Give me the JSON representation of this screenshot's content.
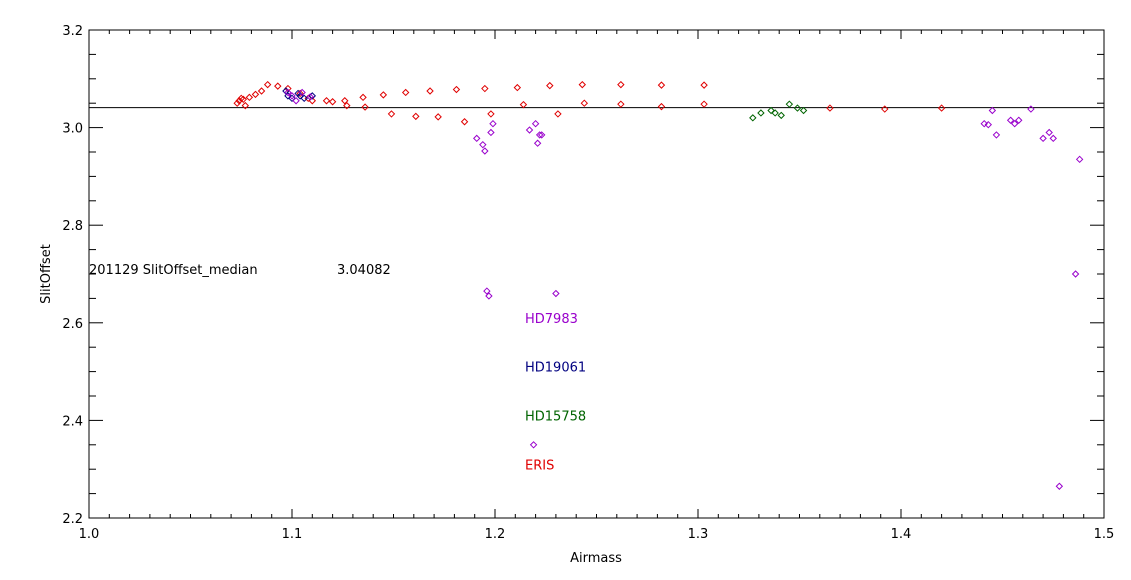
{
  "chart_data": {
    "type": "scatter",
    "title": "",
    "xlabel": "Airmass",
    "ylabel": "SlitOffset",
    "xlim": [
      1.0,
      1.5
    ],
    "ylim": [
      2.2,
      3.2
    ],
    "x_ticks": [
      "1.0",
      "1.1",
      "1.2",
      "1.3",
      "1.4",
      "1.5"
    ],
    "y_ticks": [
      "2.2",
      "2.4",
      "2.6",
      "2.8",
      "3.0",
      "3.2"
    ],
    "grid": false,
    "marker": "diamond",
    "median_line": 3.04082,
    "annotation": {
      "label": "201129  SlitOffset_median",
      "value": "3.04082",
      "y": 2.71
    },
    "legend_labels": [
      {
        "name": "HD7983",
        "color": "#9900cc",
        "y": 2.61
      },
      {
        "name": "HD19061",
        "color": "#000080",
        "y": 2.51
      },
      {
        "name": "HD15758",
        "color": "#006400",
        "y": 2.41
      },
      {
        "name": "ERIS",
        "color": "#e00000",
        "y": 2.31
      }
    ],
    "series": [
      {
        "name": "ERIS",
        "color": "#e00000",
        "points": [
          [
            1.073,
            3.05
          ],
          [
            1.074,
            3.055
          ],
          [
            1.075,
            3.06
          ],
          [
            1.076,
            3.058
          ],
          [
            1.077,
            3.045
          ],
          [
            1.079,
            3.062
          ],
          [
            1.082,
            3.068
          ],
          [
            1.085,
            3.075
          ],
          [
            1.088,
            3.088
          ],
          [
            1.093,
            3.085
          ],
          [
            1.098,
            3.08
          ],
          [
            1.104,
            3.07
          ],
          [
            1.108,
            3.06
          ],
          [
            1.11,
            3.055
          ],
          [
            1.117,
            3.055
          ],
          [
            1.12,
            3.053
          ],
          [
            1.126,
            3.055
          ],
          [
            1.127,
            3.045
          ],
          [
            1.135,
            3.062
          ],
          [
            1.136,
            3.042
          ],
          [
            1.145,
            3.067
          ],
          [
            1.149,
            3.028
          ],
          [
            1.156,
            3.072
          ],
          [
            1.161,
            3.023
          ],
          [
            1.168,
            3.075
          ],
          [
            1.172,
            3.022
          ],
          [
            1.181,
            3.078
          ],
          [
            1.185,
            3.012
          ],
          [
            1.195,
            3.08
          ],
          [
            1.198,
            3.028
          ],
          [
            1.211,
            3.082
          ],
          [
            1.214,
            3.047
          ],
          [
            1.227,
            3.086
          ],
          [
            1.231,
            3.028
          ],
          [
            1.243,
            3.088
          ],
          [
            1.244,
            3.05
          ],
          [
            1.262,
            3.088
          ],
          [
            1.262,
            3.048
          ],
          [
            1.282,
            3.087
          ],
          [
            1.282,
            3.043
          ],
          [
            1.303,
            3.087
          ],
          [
            1.303,
            3.048
          ],
          [
            1.365,
            3.04
          ],
          [
            1.392,
            3.038
          ],
          [
            1.42,
            3.04
          ]
        ]
      },
      {
        "name": "HD19061",
        "color": "#000080",
        "points": [
          [
            1.097,
            3.075
          ],
          [
            1.098,
            3.065
          ],
          [
            1.1,
            3.06
          ],
          [
            1.103,
            3.07
          ],
          [
            1.104,
            3.065
          ],
          [
            1.106,
            3.06
          ],
          [
            1.11,
            3.065
          ]
        ]
      },
      {
        "name": "HD15758",
        "color": "#006400",
        "points": [
          [
            1.327,
            3.02
          ],
          [
            1.331,
            3.03
          ],
          [
            1.336,
            3.035
          ],
          [
            1.338,
            3.03
          ],
          [
            1.341,
            3.025
          ],
          [
            1.345,
            3.048
          ],
          [
            1.349,
            3.04
          ],
          [
            1.352,
            3.035
          ]
        ]
      },
      {
        "name": "HD7983",
        "color": "#9900cc",
        "points": [
          [
            1.098,
            3.072
          ],
          [
            1.1,
            3.065
          ],
          [
            1.102,
            3.055
          ],
          [
            1.105,
            3.072
          ],
          [
            1.109,
            3.063
          ],
          [
            1.191,
            2.978
          ],
          [
            1.194,
            2.965
          ],
          [
            1.195,
            2.952
          ],
          [
            1.196,
            2.665
          ],
          [
            1.197,
            2.655
          ],
          [
            1.198,
            2.99
          ],
          [
            1.199,
            3.008
          ],
          [
            1.217,
            2.995
          ],
          [
            1.22,
            3.008
          ],
          [
            1.221,
            2.968
          ],
          [
            1.222,
            2.985
          ],
          [
            1.223,
            2.985
          ],
          [
            1.219,
            2.35
          ],
          [
            1.23,
            2.66
          ],
          [
            1.441,
            3.008
          ],
          [
            1.443,
            3.006
          ],
          [
            1.445,
            3.035
          ],
          [
            1.447,
            2.985
          ],
          [
            1.454,
            3.015
          ],
          [
            1.456,
            3.008
          ],
          [
            1.458,
            3.015
          ],
          [
            1.464,
            3.038
          ],
          [
            1.47,
            2.978
          ],
          [
            1.473,
            2.99
          ],
          [
            1.475,
            2.978
          ],
          [
            1.478,
            2.265
          ],
          [
            1.486,
            2.7
          ],
          [
            1.488,
            2.935
          ]
        ]
      }
    ]
  }
}
